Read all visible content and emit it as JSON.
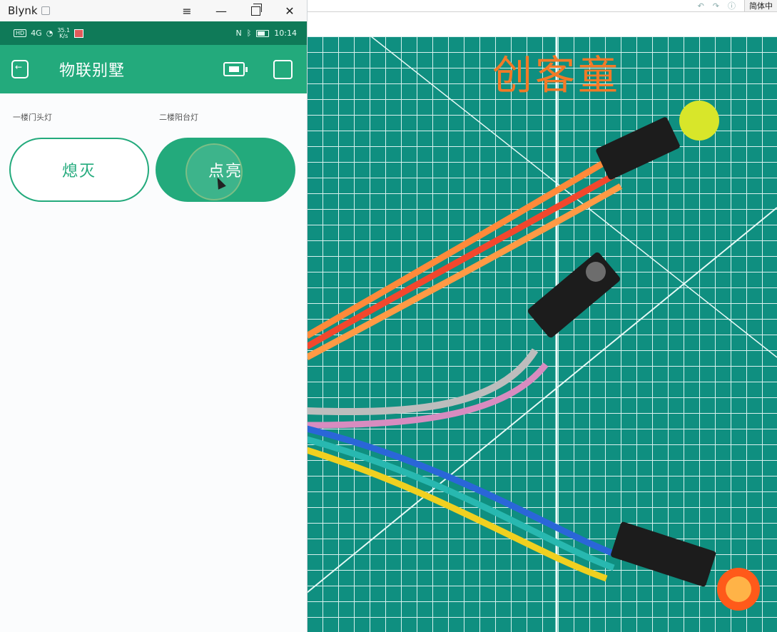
{
  "window": {
    "title": "Blynk",
    "controls": [
      "≡",
      "—",
      "⧉",
      "✕"
    ]
  },
  "statusbar": {
    "network_badge": "HD",
    "signal": "4G",
    "speed_value": "35.1",
    "speed_unit": "K/s",
    "time": "10:14"
  },
  "appbar": {
    "title": "物联别墅",
    "icons": [
      "exit-icon",
      "device-icon",
      "play-icon"
    ]
  },
  "widgets": [
    {
      "label": "一楼门头灯",
      "button_text": "熄灭",
      "state": "off"
    },
    {
      "label": "二楼阳台灯",
      "button_text": "点亮",
      "state": "on"
    }
  ],
  "background": {
    "language": "简体中",
    "logo_text": "创客童",
    "colors": {
      "mat": "#0f8f80",
      "grid": "#d8f1ee",
      "accent": "#23aa7c",
      "logo": "#f27a27"
    }
  }
}
